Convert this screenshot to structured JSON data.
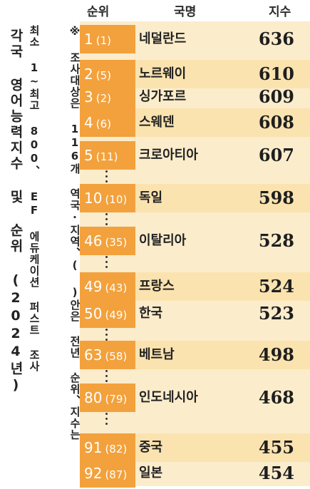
{
  "title": "각국 영어능력지수 및 순위 (2024년)",
  "note_marker": "※",
  "note_lines": [
    "최소 1~최고 800、 EF 에듀케이션 퍼스트 조사",
    "조사대상은 116개 역국·지역、( )안은 전년 순위、지수는"
  ],
  "headers": {
    "rank": "순위",
    "country": "국명",
    "score": "지수"
  },
  "rows": [
    {
      "rank": "1",
      "prev": "(1)",
      "country": "네덜란드",
      "score": "636"
    },
    {
      "rank": "2",
      "prev": "(5)",
      "country": "노르웨이",
      "score": "610"
    },
    {
      "rank": "3",
      "prev": "(2)",
      "country": "싱가포르",
      "score": "609"
    },
    {
      "rank": "4",
      "prev": "(6)",
      "country": "스웨덴",
      "score": "608"
    },
    {
      "rank": "5",
      "prev": "(11)",
      "country": "크로아티아",
      "score": "607"
    },
    {
      "rank": "10",
      "prev": "(10)",
      "country": "독일",
      "score": "598"
    },
    {
      "rank": "46",
      "prev": "(35)",
      "country": "이탈리아",
      "score": "528"
    },
    {
      "rank": "49",
      "prev": "(43)",
      "country": "프랑스",
      "score": "524"
    },
    {
      "rank": "50",
      "prev": "(49)",
      "country": "한국",
      "score": "523"
    },
    {
      "rank": "63",
      "prev": "(58)",
      "country": "베트남",
      "score": "498"
    },
    {
      "rank": "80",
      "prev": "(79)",
      "country": "인도네시아",
      "score": "468"
    },
    {
      "rank": "91",
      "prev": "(82)",
      "country": "중국",
      "score": "455"
    },
    {
      "rank": "92",
      "prev": "(87)",
      "country": "일본",
      "score": "454"
    }
  ],
  "colors": {
    "rank_bg": "#f3a13c",
    "panel_bg": "#fbeccb",
    "alt_bg": "#fbe3b0"
  }
}
